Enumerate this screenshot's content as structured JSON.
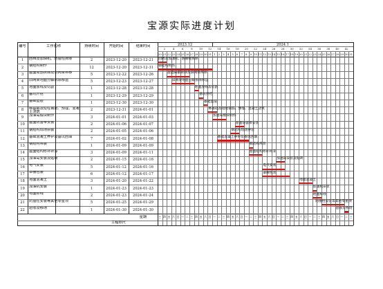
{
  "title": "宝源实际进度计划",
  "headers": {
    "index": "编号",
    "task": "工作名称",
    "duration": "持续时间",
    "start": "开始时间",
    "end": "结束时间"
  },
  "months": [
    "2023.12",
    "2024.1"
  ],
  "top_day_labels": [
    "2",
    "4",
    "6",
    "8",
    "10",
    "12",
    "14",
    "16",
    "18",
    "20",
    "22",
    "24",
    "26",
    "28",
    "30",
    "32",
    "34",
    "36",
    "38",
    "40",
    "42"
  ],
  "days": [
    "20",
    "21",
    "22",
    "23",
    "24",
    "25",
    "26",
    "27",
    "28",
    "29",
    "30",
    "31",
    "1",
    "2",
    "3",
    "4",
    "5",
    "6",
    "7",
    "8",
    "9",
    "10",
    "11",
    "12",
    "13",
    "14",
    "15",
    "16",
    "17",
    "18",
    "19",
    "20",
    "21",
    "22",
    "23",
    "24",
    "25",
    "26",
    "27",
    "28",
    "29",
    "30",
    "31"
  ],
  "footer": {
    "week_label": "星期",
    "progress_label": "工程标尺"
  },
  "week_cells": [
    "三",
    "四",
    "五",
    "六",
    "日",
    "一",
    "二",
    "三",
    "四",
    "五",
    "六",
    "日",
    "一",
    "二",
    "三",
    "四",
    "五",
    "六",
    "日",
    "一",
    "二",
    "三",
    "四",
    "五",
    "六",
    "日",
    "一",
    "二",
    "三",
    "四",
    "五",
    "六",
    "日",
    "一",
    "二",
    "三",
    "四",
    "五",
    "六",
    "日",
    "一",
    "二",
    "三"
  ],
  "tasks": [
    {
      "no": "1",
      "name": "回档及加油机、防撞柱拆除",
      "dur": "2",
      "start": "2023-12-20",
      "end": "2023-12-21",
      "s": 0,
      "d": 2,
      "label": "回档及加油机、防撞柱拆除"
    },
    {
      "no": "2",
      "name": "钢结构制作",
      "dur": "12",
      "start": "2023-12-20",
      "end": "2023-12-31",
      "s": 0,
      "d": 12,
      "label": "钢结构制作"
    },
    {
      "no": "3",
      "name": "屋面局部拆除及旧网架吊移",
      "dur": "5",
      "start": "2023-12-22",
      "end": "2023-12-26",
      "s": 2,
      "d": 5,
      "label": "屋面局部拆除及旧网架吊移"
    },
    {
      "no": "4",
      "name": "旧网架地面分解拆除移运",
      "dur": "5",
      "start": "2023-12-23",
      "end": "2023-12-27",
      "s": 3,
      "d": 5,
      "label": "旧网架地面分解拆除移运"
    },
    {
      "no": "5",
      "name": "地面放线及切割",
      "dur": "1",
      "start": "2023-12-28",
      "end": "2023-12-28",
      "s": 8,
      "d": 1,
      "label": "地面放线及切割"
    },
    {
      "no": "6",
      "name": "基坑开挖",
      "dur": "1",
      "start": "2023-12-29",
      "end": "2023-12-29",
      "s": 9,
      "d": 1,
      "label": "基坑开挖"
    },
    {
      "no": "7",
      "name": "基础垫层",
      "dur": "1",
      "start": "2023-12-30",
      "end": "2023-12-30",
      "s": 10,
      "d": 1,
      "label": "基础垫层"
    },
    {
      "no": "8",
      "name": "绑基础及短柱钢筋、预埋、混凝土浇筑",
      "dur": "2",
      "start": "2023-12-31",
      "end": "2024-01-01",
      "s": 11,
      "d": 2,
      "label": "绑基础及短柱钢筋、预埋、混凝土浇筑"
    },
    {
      "no": "9",
      "name": "加油岛模块制作",
      "dur": "3",
      "start": "2024-01-01",
      "end": "2024-01-03",
      "s": 12,
      "d": 3,
      "label": "加油岛模块制作"
    },
    {
      "no": "10",
      "name": "屋面防雷带安装",
      "dur": "2",
      "start": "2024-01-06",
      "end": "2024-01-07",
      "s": 17,
      "d": 2,
      "label": "屋面防雷带安装"
    },
    {
      "no": "11",
      "name": "钢结构现场拼装",
      "dur": "2",
      "start": "2024-01-05",
      "end": "2024-01-06",
      "s": 16,
      "d": 2,
      "label": "钢结构现场拼装"
    },
    {
      "no": "12",
      "name": "基础混凝土养护及基坑回填",
      "dur": "7",
      "start": "2024-01-02",
      "end": "2024-01-08",
      "s": 13,
      "d": 7,
      "label": "基础混凝土养护及基坑回填"
    },
    {
      "no": "13",
      "name": "钢结构吊装",
      "dur": "1",
      "start": "2024-01-09",
      "end": "2024-01-09",
      "s": 20,
      "d": 1,
      "label": "钢结构吊装"
    },
    {
      "no": "14",
      "name": "屋面结构修补补漆",
      "dur": "3",
      "start": "2024-01-09",
      "end": "2024-01-11",
      "s": 20,
      "d": 3,
      "label": "屋面结构修补补漆"
    },
    {
      "no": "15",
      "name": "加油岛安装及贴砖",
      "dur": "2",
      "start": "2024-01-15",
      "end": "2024-01-16",
      "s": 26,
      "d": 2,
      "label": "加油岛安装及贴砖"
    },
    {
      "no": "16",
      "name": "电气安装",
      "dur": "5",
      "start": "2024-01-12",
      "end": "2024-01-16",
      "s": 23,
      "d": 5,
      "label": "电气安装"
    },
    {
      "no": "17",
      "name": "罩棚包装",
      "dur": "6",
      "start": "2024-01-12",
      "end": "2024-01-17",
      "s": 23,
      "d": 6,
      "label": "罩棚包装"
    },
    {
      "no": "18",
      "name": "地面混凝土",
      "dur": "3",
      "start": "2024-01-20",
      "end": "2024-01-22",
      "s": 31,
      "d": 3,
      "label": "地面混凝土"
    },
    {
      "no": "19",
      "name": "加油机安装",
      "dur": "1",
      "start": "2024-01-23",
      "end": "2024-01-23",
      "s": 34,
      "d": 1,
      "label": "加油机安装"
    },
    {
      "no": "20",
      "name": "地面标线",
      "dur": "2",
      "start": "2024-01-23",
      "end": "2024-01-24",
      "s": 34,
      "d": 2,
      "label": "地面标线"
    },
    {
      "no": "21",
      "name": "防撞柱安装等其他零星项",
      "dur": "5",
      "start": "2024-01-25",
      "end": "2024-01-29",
      "s": 36,
      "d": 5,
      "label": "防撞柱安装等其他零星项"
    },
    {
      "no": "22",
      "name": "验收及移场",
      "dur": "1",
      "start": "2024-01-30",
      "end": "2024-01-30",
      "s": 41,
      "d": 1,
      "label": "验收及移场"
    }
  ]
}
